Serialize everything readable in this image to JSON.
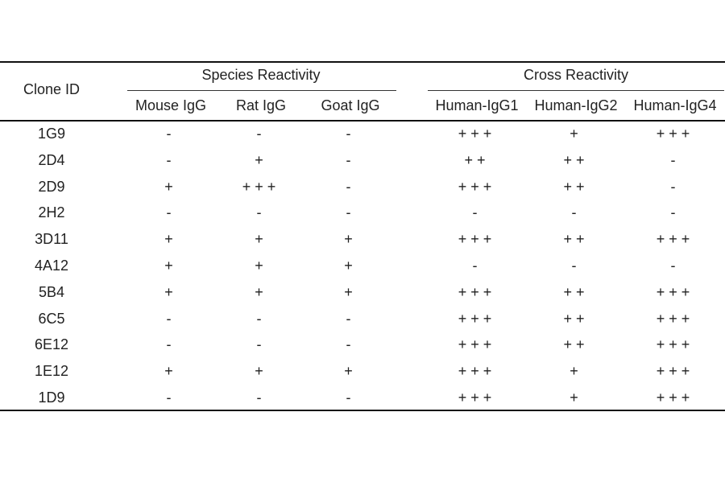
{
  "table": {
    "headers": {
      "clone_id": "Clone ID",
      "species_group": "Species Reactivity",
      "cross_group": "Cross Reactivity",
      "columns": [
        "Mouse IgG",
        "Rat IgG",
        "Goat IgG",
        "Human-IgG1",
        "Human-IgG2",
        "Human-IgG4"
      ]
    },
    "rows": [
      {
        "id": "1G9",
        "values": [
          "-",
          "-",
          "-",
          "+++",
          "+",
          "+++"
        ]
      },
      {
        "id": "2D4",
        "values": [
          "-",
          "+",
          "-",
          "++",
          "++",
          "-"
        ]
      },
      {
        "id": "2D9",
        "values": [
          "+",
          "+++",
          "-",
          "+++",
          "++",
          "-"
        ]
      },
      {
        "id": "2H2",
        "values": [
          "-",
          "-",
          "-",
          "-",
          "-",
          "-"
        ]
      },
      {
        "id": "3D11",
        "values": [
          "+",
          "+",
          "+",
          "+++",
          "++",
          "+++"
        ]
      },
      {
        "id": "4A12",
        "values": [
          "+",
          "+",
          "+",
          "-",
          "-",
          "-"
        ]
      },
      {
        "id": "5B4",
        "values": [
          "+",
          "+",
          "+",
          "+++",
          "++",
          "+++"
        ]
      },
      {
        "id": "6C5",
        "values": [
          "-",
          "-",
          "-",
          "+++",
          "++",
          "+++"
        ]
      },
      {
        "id": "6E12",
        "values": [
          "-",
          "-",
          "-",
          "+++",
          "++",
          "+++"
        ]
      },
      {
        "id": "1E12",
        "values": [
          "+",
          "+",
          "+",
          "+++",
          "+",
          "+++"
        ]
      },
      {
        "id": "1D9",
        "values": [
          "-",
          "-",
          "-",
          "+++",
          "+",
          "+++"
        ]
      }
    ]
  }
}
